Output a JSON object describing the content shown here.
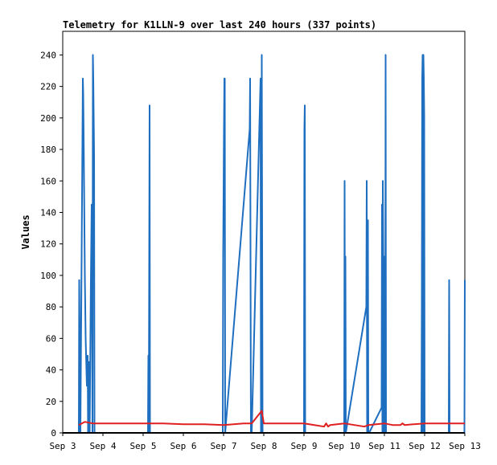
{
  "chart_data": {
    "type": "line",
    "title": "Telemetry for K1LLN-9 over last 240 hours (337 points)",
    "xlabel": "",
    "ylabel": "Values",
    "x_ticks": [
      "Sep 3",
      "Sep 4",
      "Sep 5",
      "Sep 6",
      "Sep 7",
      "Sep 8",
      "Sep 9",
      "Sep 10",
      "Sep 11",
      "Sep 12",
      "Sep 13"
    ],
    "x_unit": "day of September",
    "xlim": [
      3,
      13
    ],
    "ylim": [
      0,
      255
    ],
    "y_ticks": [
      0,
      20,
      40,
      60,
      80,
      100,
      120,
      140,
      160,
      180,
      200,
      220,
      240
    ],
    "grid": false,
    "colors": {
      "series_blue": "#1f6fc1",
      "series_red": "#e02020",
      "series_black": "#000000"
    },
    "series": [
      {
        "color": "#1f6fc1",
        "x": [
          3.4,
          3.41,
          3.44,
          3.45,
          3.47,
          3.49,
          3.5,
          3.51,
          3.52,
          3.55,
          3.57,
          3.6,
          3.62,
          3.63,
          3.65,
          3.67,
          3.7,
          3.72,
          3.74,
          3.75,
          3.76,
          3.78,
          3.79,
          3.8,
          3.83,
          3.85,
          3.87,
          3.9,
          3.92,
          3.95,
          3.97,
          3.99,
          4.0,
          4.02,
          5.12,
          5.13,
          5.14,
          5.16,
          5.17,
          6.98,
          6.99,
          7.01,
          7.02,
          7.03,
          7.04,
          7.65,
          7.66,
          7.68,
          7.69,
          7.7,
          7.92,
          7.93,
          7.95,
          7.97,
          7.98,
          9.0,
          9.01,
          9.02,
          9.03,
          9.04,
          9.05,
          10.0,
          10.01,
          10.02,
          10.03,
          10.04,
          10.55,
          10.56,
          10.57,
          10.58,
          10.59,
          10.6,
          10.62,
          10.93,
          10.94,
          10.95,
          10.96,
          10.98,
          10.99,
          11.0,
          11.01,
          11.02,
          11.03,
          11.04,
          11.92,
          11.93,
          11.94,
          11.95,
          11.96,
          11.97,
          11.98,
          11.99,
          12.0,
          12.02,
          12.04,
          12.6,
          12.61,
          12.62,
          12.99,
          13.0
        ],
        "y": [
          0,
          97,
          0,
          39,
          112,
          185,
          225,
          215,
          190,
          100,
          60,
          30,
          49,
          0,
          45,
          0,
          97,
          145,
          0,
          240,
          225,
          176,
          0,
          0,
          0,
          0,
          0,
          0,
          0,
          0,
          0,
          0,
          0,
          0,
          0,
          49,
          0,
          208,
          0,
          0,
          112,
          193,
          225,
          225,
          0,
          193,
          225,
          0,
          0,
          0,
          225,
          0,
          240,
          0,
          0,
          0,
          193,
          208,
          0,
          0,
          0,
          0,
          160,
          0,
          112,
          0,
          80,
          160,
          0,
          0,
          135,
          0,
          0,
          16,
          145,
          0,
          160,
          80,
          0,
          0,
          112,
          0,
          240,
          0,
          0,
          80,
          225,
          240,
          0,
          240,
          225,
          200,
          0,
          0,
          0,
          0,
          97,
          0,
          0,
          97
        ],
        "description": "Values series (blue)"
      },
      {
        "color": "#e02020",
        "x": [
          3.4,
          3.55,
          3.75,
          4.0,
          4.5,
          5.0,
          5.5,
          6.0,
          6.5,
          7.0,
          7.5,
          7.7,
          7.95,
          8.0,
          8.5,
          9.0,
          9.5,
          9.55,
          9.6,
          9.65,
          10.0,
          10.5,
          10.6,
          11.0,
          11.2,
          11.4,
          11.45,
          11.5,
          12.0,
          12.5,
          13.0
        ],
        "y": [
          5,
          7,
          6,
          6,
          6,
          6,
          6,
          5.5,
          5.5,
          5,
          6,
          6,
          14,
          6,
          6,
          6,
          4,
          6,
          4,
          5,
          6,
          4,
          5,
          6,
          5,
          5,
          6,
          5,
          6,
          6,
          6
        ]
      },
      {
        "color": "#000000",
        "x": [
          3.0,
          13.0
        ],
        "y": [
          0,
          0
        ]
      }
    ]
  }
}
